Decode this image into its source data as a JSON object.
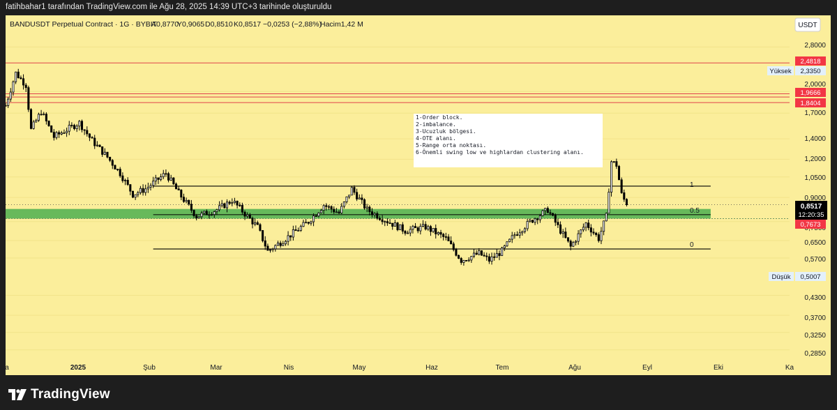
{
  "header": {
    "attribution": "fatihbahar1 tarafından TradingView.com ile Ağu 28, 2025 14:39 UTC+3 tarihinde oluşturuldu"
  },
  "legend": {
    "symbol": "BANDUSDT Perpetual Contract · 1G · BYBIT",
    "open": "A0,8770",
    "high": "Y0,9065",
    "low": "D0,8510",
    "close": "K0,8517",
    "change": "−0,0253 (−2,88%)",
    "volume": "Hacim1,42 M"
  },
  "currency_button": "USDT",
  "notes": [
    "1-Order block.",
    "2-imbalance.",
    "3-Ucuzluk bölgesi.",
    "4-OTE alanı.",
    "5-Range orta noktası.",
    "6-Önemli swing low ve highlardan clustering alanı."
  ],
  "fib_labels": [
    "1",
    "0.5",
    "0"
  ],
  "price_scale": {
    "ticks": [
      "2,8000",
      "2,0000",
      "1,7000",
      "1,4000",
      "1,2000",
      "1,0500",
      "0,9000",
      "0,7500",
      "0,6500",
      "0,5700",
      "0,4300",
      "0,3700",
      "0,3250",
      "0,2850"
    ],
    "high_label": "Yüksek",
    "high_value": "2,3350",
    "low_label": "Düşük",
    "low_value": "0,5007",
    "red_levels": [
      "2,4818",
      "1,9666",
      "1,8404"
    ],
    "current_price": "0,8517",
    "countdown": "12:20:35",
    "zone_label": "0,7673"
  },
  "time_axis": [
    "a",
    "2025",
    "Şub",
    "Mar",
    "Nis",
    "May",
    "Haz",
    "Tem",
    "Ağu",
    "Eyl",
    "Eki",
    "Ka"
  ],
  "footer": {
    "brand": "TradingView"
  },
  "colors": {
    "background": "#fbee9b",
    "frame": "#1e1e1e",
    "candle": "#000000",
    "zone": "#4caf50",
    "red_line": "#e0424b",
    "red_label": "#f23645",
    "text": "#131722"
  },
  "chart_data": {
    "type": "candlestick",
    "title": "BANDUSDT Perpetual Contract · 1G · BYBIT",
    "ylabel": "USDT",
    "y_scale": "log",
    "ylim": [
      0.27,
      3.1
    ],
    "xlim": [
      "2024-12-27",
      "2025-10-31"
    ],
    "candles_start": "2024-12-27",
    "candle_interval": "1 day",
    "approx_close_path": [
      [
        "2024-12-27",
        1.8
      ],
      [
        "2024-12-31",
        2.3
      ],
      [
        "2025-01-04",
        2.1
      ],
      [
        "2025-01-06",
        1.5
      ],
      [
        "2025-01-10",
        1.72
      ],
      [
        "2025-01-15",
        1.42
      ],
      [
        "2025-01-20",
        1.5
      ],
      [
        "2025-01-25",
        1.58
      ],
      [
        "2025-01-30",
        1.38
      ],
      [
        "2025-02-05",
        1.22
      ],
      [
        "2025-02-10",
        1.08
      ],
      [
        "2025-02-15",
        0.92
      ],
      [
        "2025-02-20",
        0.96
      ],
      [
        "2025-02-28",
        1.08
      ],
      [
        "2025-03-05",
        0.93
      ],
      [
        "2025-03-12",
        0.78
      ],
      [
        "2025-03-20",
        0.82
      ],
      [
        "2025-03-26",
        0.88
      ],
      [
        "2025-04-05",
        0.72
      ],
      [
        "2025-04-09",
        0.6
      ],
      [
        "2025-04-15",
        0.65
      ],
      [
        "2025-04-25",
        0.75
      ],
      [
        "2025-05-01",
        0.85
      ],
      [
        "2025-05-07",
        0.8
      ],
      [
        "2025-05-12",
        0.96
      ],
      [
        "2025-05-18",
        0.82
      ],
      [
        "2025-05-25",
        0.76
      ],
      [
        "2025-06-02",
        0.7
      ],
      [
        "2025-06-10",
        0.72
      ],
      [
        "2025-06-18",
        0.66
      ],
      [
        "2025-06-24",
        0.56
      ],
      [
        "2025-07-01",
        0.59
      ],
      [
        "2025-07-05",
        0.56
      ],
      [
        "2025-07-10",
        0.6
      ],
      [
        "2025-07-15",
        0.68
      ],
      [
        "2025-07-22",
        0.76
      ],
      [
        "2025-07-28",
        0.82
      ],
      [
        "2025-08-02",
        0.7
      ],
      [
        "2025-08-06",
        0.62
      ],
      [
        "2025-08-12",
        0.74
      ],
      [
        "2025-08-17",
        0.66
      ],
      [
        "2025-08-20",
        0.78
      ],
      [
        "2025-08-22",
        1.18
      ],
      [
        "2025-08-24",
        1.15
      ],
      [
        "2025-08-26",
        0.92
      ],
      [
        "2025-08-28",
        0.8517
      ]
    ],
    "horizontal_lines": {
      "red": [
        2.4818,
        1.9666,
        1.92,
        1.8404
      ],
      "fib_1": 0.98,
      "fib_0_5": 0.79,
      "fib_0": 0.61
    },
    "green_zone": [
      0.7673,
      0.825
    ],
    "series_high": 2.335,
    "series_low": 0.5007,
    "last_price": 0.8517
  }
}
